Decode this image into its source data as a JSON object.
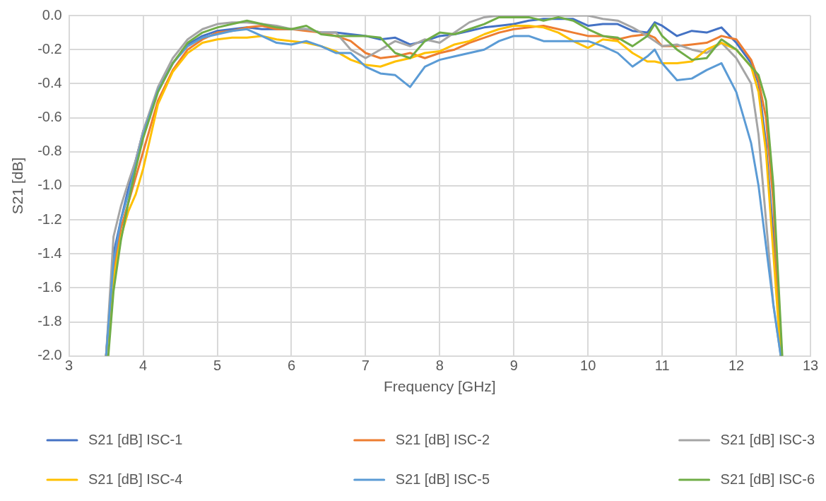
{
  "chart_data": {
    "type": "line",
    "xlabel": "Frequency [GHz]",
    "ylabel": "S21 [dB]",
    "x": [
      3.5,
      3.6,
      3.7,
      3.8,
      3.9,
      4.0,
      4.2,
      4.4,
      4.6,
      4.8,
      5.0,
      5.2,
      5.4,
      5.6,
      5.8,
      6.0,
      6.2,
      6.4,
      6.6,
      6.8,
      7.0,
      7.2,
      7.4,
      7.6,
      7.8,
      8.0,
      8.2,
      8.4,
      8.6,
      8.8,
      9.0,
      9.2,
      9.4,
      9.6,
      9.8,
      10.0,
      10.2,
      10.4,
      10.6,
      10.8,
      10.9,
      11.0,
      11.2,
      11.4,
      11.6,
      11.8,
      12.0,
      12.2,
      12.3,
      12.4,
      12.5,
      12.6
    ],
    "series": [
      {
        "name": "S21 [dB] ISC-1",
        "color": "#4472c4",
        "values": [
          -2.0,
          -1.4,
          -1.2,
          -1.02,
          -0.85,
          -0.68,
          -0.44,
          -0.28,
          -0.17,
          -0.12,
          -0.09,
          -0.08,
          -0.07,
          -0.08,
          -0.08,
          -0.08,
          -0.08,
          -0.1,
          -0.1,
          -0.11,
          -0.12,
          -0.14,
          -0.13,
          -0.17,
          -0.15,
          -0.12,
          -0.11,
          -0.09,
          -0.07,
          -0.06,
          -0.05,
          -0.03,
          -0.02,
          -0.02,
          -0.02,
          -0.06,
          -0.05,
          -0.05,
          -0.09,
          -0.1,
          -0.04,
          -0.06,
          -0.12,
          -0.09,
          -0.1,
          -0.07,
          -0.16,
          -0.28,
          -0.4,
          -0.75,
          -1.3,
          -2.0
        ]
      },
      {
        "name": "S21 [dB] ISC-2",
        "color": "#ed7d31",
        "values": [
          -2.0,
          -1.5,
          -1.25,
          -1.1,
          -0.95,
          -0.8,
          -0.5,
          -0.32,
          -0.2,
          -0.14,
          -0.1,
          -0.09,
          -0.07,
          -0.06,
          -0.08,
          -0.08,
          -0.09,
          -0.1,
          -0.12,
          -0.15,
          -0.22,
          -0.25,
          -0.24,
          -0.22,
          -0.25,
          -0.22,
          -0.2,
          -0.16,
          -0.13,
          -0.1,
          -0.08,
          -0.07,
          -0.06,
          -0.08,
          -0.1,
          -0.12,
          -0.12,
          -0.14,
          -0.12,
          -0.11,
          -0.13,
          -0.18,
          -0.18,
          -0.17,
          -0.16,
          -0.12,
          -0.14,
          -0.26,
          -0.38,
          -0.6,
          -1.1,
          -2.0
        ]
      },
      {
        "name": "S21 [dB] ISC-3",
        "color": "#a5a5a5",
        "values": [
          -2.0,
          -1.3,
          -1.12,
          -0.98,
          -0.85,
          -0.68,
          -0.42,
          -0.25,
          -0.14,
          -0.08,
          -0.05,
          -0.04,
          -0.04,
          -0.05,
          -0.06,
          -0.08,
          -0.08,
          -0.1,
          -0.1,
          -0.2,
          -0.25,
          -0.2,
          -0.15,
          -0.18,
          -0.14,
          -0.16,
          -0.1,
          -0.04,
          -0.01,
          0,
          0,
          0,
          0,
          0,
          0,
          0,
          -0.02,
          -0.03,
          -0.07,
          -0.12,
          -0.15,
          -0.18,
          -0.17,
          -0.2,
          -0.22,
          -0.16,
          -0.25,
          -0.4,
          -0.7,
          -1.2,
          -1.7,
          -2.0
        ]
      },
      {
        "name": "S21 [dB] ISC-4",
        "color": "#ffc000",
        "values": [
          -2.0,
          -1.55,
          -1.3,
          -1.15,
          -1.05,
          -0.9,
          -0.52,
          -0.33,
          -0.22,
          -0.16,
          -0.14,
          -0.13,
          -0.13,
          -0.12,
          -0.14,
          -0.15,
          -0.16,
          -0.18,
          -0.21,
          -0.26,
          -0.29,
          -0.3,
          -0.27,
          -0.25,
          -0.22,
          -0.21,
          -0.17,
          -0.15,
          -0.11,
          -0.08,
          -0.06,
          -0.06,
          -0.07,
          -0.1,
          -0.15,
          -0.19,
          -0.14,
          -0.15,
          -0.22,
          -0.27,
          -0.27,
          -0.28,
          -0.28,
          -0.27,
          -0.2,
          -0.16,
          -0.2,
          -0.3,
          -0.45,
          -0.8,
          -1.4,
          -2.0
        ]
      },
      {
        "name": "S21 [dB] ISC-5",
        "color": "#5b9bd5",
        "values": [
          -2.0,
          -1.45,
          -1.2,
          -1.05,
          -0.88,
          -0.7,
          -0.44,
          -0.28,
          -0.18,
          -0.13,
          -0.11,
          -0.09,
          -0.08,
          -0.12,
          -0.16,
          -0.17,
          -0.15,
          -0.18,
          -0.22,
          -0.22,
          -0.3,
          -0.34,
          -0.35,
          -0.42,
          -0.3,
          -0.26,
          -0.24,
          -0.22,
          -0.2,
          -0.15,
          -0.12,
          -0.12,
          -0.15,
          -0.15,
          -0.15,
          -0.15,
          -0.18,
          -0.22,
          -0.3,
          -0.24,
          -0.2,
          -0.28,
          -0.38,
          -0.37,
          -0.32,
          -0.28,
          -0.45,
          -0.75,
          -1.0,
          -1.35,
          -1.7,
          -2.0
        ]
      },
      {
        "name": "S21 [dB] ISC-6",
        "color": "#70ad47",
        "x": [
          3.53,
          3.6,
          3.7,
          3.8,
          3.9,
          4.0,
          4.2,
          4.4,
          4.6,
          4.8,
          5.0,
          5.2,
          5.4,
          5.6,
          5.8,
          6.0,
          6.2,
          6.4,
          6.6,
          6.8,
          7.0,
          7.2,
          7.4,
          7.6,
          7.8,
          8.0,
          8.2,
          8.4,
          8.6,
          8.8,
          9.0,
          9.2,
          9.4,
          9.6,
          9.8,
          10.0,
          10.2,
          10.4,
          10.6,
          10.8,
          10.9,
          11.0,
          11.2,
          11.4,
          11.6,
          11.8,
          12.0,
          12.2,
          12.3,
          12.4,
          12.5,
          12.62
        ],
        "values": [
          -2.0,
          -1.62,
          -1.32,
          -1.1,
          -0.9,
          -0.72,
          -0.45,
          -0.28,
          -0.16,
          -0.1,
          -0.07,
          -0.05,
          -0.03,
          -0.05,
          -0.07,
          -0.08,
          -0.06,
          -0.11,
          -0.12,
          -0.12,
          -0.12,
          -0.13,
          -0.22,
          -0.25,
          -0.15,
          -0.1,
          -0.11,
          -0.08,
          -0.05,
          -0.01,
          -0.01,
          -0.01,
          -0.03,
          -0.01,
          -0.03,
          -0.08,
          -0.12,
          -0.13,
          -0.18,
          -0.12,
          -0.05,
          -0.12,
          -0.2,
          -0.26,
          -0.25,
          -0.14,
          -0.2,
          -0.3,
          -0.35,
          -0.5,
          -1.0,
          -2.0
        ]
      }
    ],
    "xlim": [
      3,
      13
    ],
    "xticks": [
      3,
      4,
      5,
      6,
      7,
      8,
      9,
      10,
      11,
      12,
      13
    ],
    "ylim": [
      -2.0,
      0.0
    ],
    "yticks": [
      {
        "value": -2.0,
        "label": "-2.0"
      },
      {
        "value": -1.8,
        "label": "-1.8"
      },
      {
        "value": -1.6,
        "label": "-1.6"
      },
      {
        "value": -1.4,
        "label": "-1.4"
      },
      {
        "value": -1.2,
        "label": "-1.2"
      },
      {
        "value": -1.0,
        "label": "-1.0"
      },
      {
        "value": -0.8,
        "label": "-0.8"
      },
      {
        "value": -0.6,
        "label": "-0.6"
      },
      {
        "value": -0.4,
        "label": "-0.4"
      },
      {
        "value": -0.2,
        "label": "-0.2"
      },
      {
        "value": 0.0,
        "label": "0.0"
      }
    ],
    "grid": true,
    "legend": "bottom",
    "marker": "none",
    "line_style": "solid"
  }
}
